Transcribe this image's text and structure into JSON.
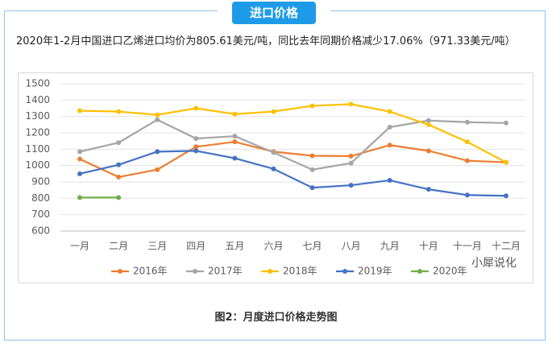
{
  "header": {
    "badge": "进口价格"
  },
  "paragraph": "2020年1-2月中国进口乙烯进口均价为805.61美元/吨，同比去年同期价格减少17.06%（971.33美元/吨）",
  "caption": "图2：月度进口价格走势图",
  "watermark": "小犀说化",
  "chart_data": {
    "type": "line",
    "categories": [
      "一月",
      "二月",
      "三月",
      "四月",
      "五月",
      "六月",
      "七月",
      "八月",
      "九月",
      "十月",
      "十一月",
      "十二月"
    ],
    "series": [
      {
        "name": "2016年",
        "color": "#ed7d31",
        "values": [
          1040,
          930,
          975,
          1115,
          1145,
          1085,
          1060,
          1058,
          1125,
          1090,
          1030,
          1020
        ]
      },
      {
        "name": "2017年",
        "color": "#a5a5a5",
        "values": [
          1085,
          1140,
          1280,
          1165,
          1180,
          1080,
          975,
          1015,
          1235,
          1275,
          1265,
          1260
        ]
      },
      {
        "name": "2018年",
        "color": "#ffc000",
        "values": [
          1335,
          1330,
          1310,
          1350,
          1315,
          1330,
          1365,
          1375,
          1330,
          1250,
          1145,
          1020
        ]
      },
      {
        "name": "2019年",
        "color": "#4472c4",
        "values": [
          950,
          1005,
          1085,
          1090,
          1045,
          980,
          865,
          880,
          910,
          855,
          820,
          815
        ]
      },
      {
        "name": "2020年",
        "color": "#70ad47",
        "values": [
          805,
          805,
          null,
          null,
          null,
          null,
          null,
          null,
          null,
          null,
          null,
          null
        ]
      }
    ],
    "ylim": [
      600,
      1500
    ],
    "yticks": [
      600,
      700,
      800,
      900,
      1000,
      1100,
      1200,
      1300,
      1400,
      1500
    ],
    "grid": true,
    "legend": "bottom"
  }
}
